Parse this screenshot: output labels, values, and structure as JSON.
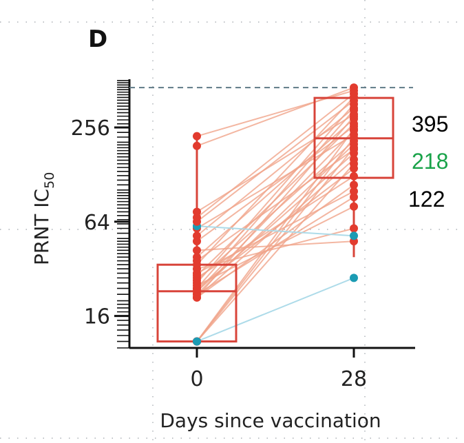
{
  "panel_label": "D",
  "chart_data": {
    "type": "box-with-paired-lines",
    "title": "",
    "ylabel_main": "PRNT IC",
    "ylabel_sub": "50",
    "xlabel": "Days since vaccination",
    "y_scale": "log2",
    "ylim": [
      10,
      520
    ],
    "yticks": [
      16,
      64,
      256
    ],
    "ytick_labels": [
      "16",
      "64",
      "256"
    ],
    "categories": [
      0,
      28
    ],
    "category_labels": [
      "0",
      "28"
    ],
    "reference_line_value": 460,
    "boxes": [
      {
        "day": 0,
        "q1": 11,
        "median": 23,
        "q3": 34,
        "min": 11,
        "max": 225
      },
      {
        "day": 28,
        "q1": 122,
        "median": 218,
        "q3": 395,
        "min": 38,
        "max": 460
      }
    ],
    "annotations": [
      {
        "text": "395",
        "color": "#000000"
      },
      {
        "text": "218",
        "color": "#1aa34a"
      },
      {
        "text": "122",
        "color": "#000000"
      }
    ],
    "colors": {
      "red": "#e23b2e",
      "line_red": "#f0a48a",
      "blue": "#1b9bb3",
      "line_blue": "#a9d9e8",
      "box": "#d8443a",
      "dash": "#5f7a86"
    },
    "pairs": [
      {
        "d0": 11,
        "d28": 150,
        "group": "red"
      },
      {
        "d0": 11,
        "d28": 190,
        "group": "red"
      },
      {
        "d0": 11,
        "d28": 220,
        "group": "red"
      },
      {
        "d0": 11,
        "d28": 250,
        "group": "red"
      },
      {
        "d0": 11,
        "d28": 28,
        "group": "blue"
      },
      {
        "d0": 21,
        "d28": 110,
        "group": "red"
      },
      {
        "d0": 21,
        "d28": 300,
        "group": "red"
      },
      {
        "d0": 21,
        "d28": 160,
        "group": "red"
      },
      {
        "d0": 22,
        "d28": 200,
        "group": "red"
      },
      {
        "d0": 22,
        "d28": 92,
        "group": "red"
      },
      {
        "d0": 23,
        "d28": 245,
        "group": "red"
      },
      {
        "d0": 23,
        "d28": 175,
        "group": "red"
      },
      {
        "d0": 24,
        "d28": 330,
        "group": "red"
      },
      {
        "d0": 24,
        "d28": 140,
        "group": "red"
      },
      {
        "d0": 25,
        "d28": 80,
        "group": "red"
      },
      {
        "d0": 26,
        "d28": 360,
        "group": "red"
      },
      {
        "d0": 27,
        "d28": 210,
        "group": "red"
      },
      {
        "d0": 28,
        "d28": 125,
        "group": "red"
      },
      {
        "d0": 29,
        "d28": 270,
        "group": "red"
      },
      {
        "d0": 30,
        "d28": 100,
        "group": "red"
      },
      {
        "d0": 32,
        "d28": 58,
        "group": "red"
      },
      {
        "d0": 34,
        "d28": 400,
        "group": "red"
      },
      {
        "d0": 36,
        "d28": 185,
        "group": "red"
      },
      {
        "d0": 38,
        "d28": 290,
        "group": "red"
      },
      {
        "d0": 42,
        "d28": 48,
        "group": "red"
      },
      {
        "d0": 48,
        "d28": 260,
        "group": "red"
      },
      {
        "d0": 52,
        "d28": 340,
        "group": "red"
      },
      {
        "d0": 58,
        "d28": 230,
        "group": "red"
      },
      {
        "d0": 60,
        "d28": 52,
        "group": "blue"
      },
      {
        "d0": 64,
        "d28": 380,
        "group": "red"
      },
      {
        "d0": 68,
        "d28": 420,
        "group": "red"
      },
      {
        "d0": 74,
        "d28": 310,
        "group": "red"
      },
      {
        "d0": 195,
        "d28": 460,
        "group": "red"
      },
      {
        "d0": 225,
        "d28": 440,
        "group": "red"
      }
    ]
  }
}
